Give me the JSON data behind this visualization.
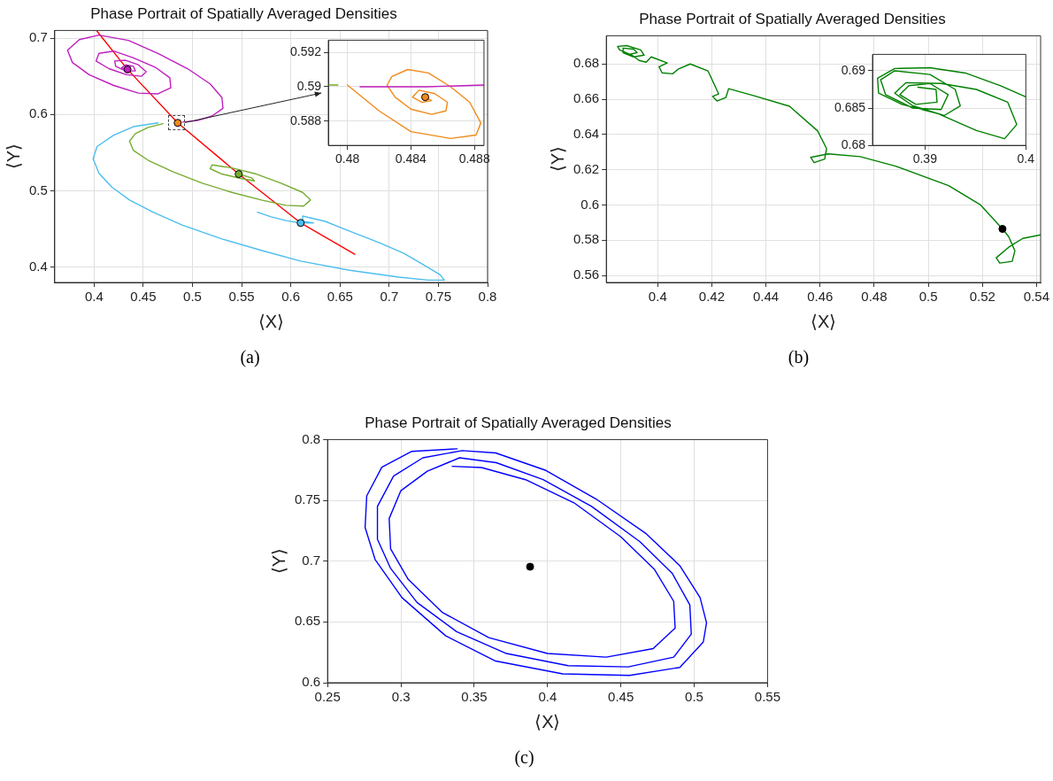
{
  "chart_data": [
    {
      "type": "line",
      "title": "Phase Portrait of Spatially Averaged Densities",
      "xlabel": "⟨X⟩",
      "ylabel": "⟨Y⟩",
      "xlim": [
        0.36,
        0.8
      ],
      "ylim": [
        0.38,
        0.71
      ],
      "xticks": [
        0.4,
        0.45,
        0.5,
        0.55,
        0.6,
        0.65,
        0.7,
        0.75,
        0.8
      ],
      "yticks": [
        0.4,
        0.5,
        0.6,
        0.7
      ],
      "grid": true,
      "annotations": [
        "(a)"
      ],
      "series": [
        {
          "type": "line",
          "color": "#bf1fbf",
          "x": [
            0.49,
            0.505,
            0.52,
            0.531,
            0.53,
            0.518,
            0.495,
            0.465,
            0.435,
            0.405,
            0.385,
            0.373,
            0.378,
            0.395,
            0.42,
            0.445,
            0.465,
            0.478,
            0.477,
            0.462,
            0.44,
            0.42,
            0.405,
            0.402,
            0.415,
            0.433,
            0.448,
            0.453,
            0.445,
            0.432,
            0.421,
            0.422,
            0.432,
            0.442,
            0.44,
            0.432,
            0.428,
            0.434
          ],
          "values": [
            0.59,
            0.592,
            0.598,
            0.608,
            0.622,
            0.64,
            0.66,
            0.68,
            0.697,
            0.704,
            0.698,
            0.684,
            0.668,
            0.652,
            0.638,
            0.628,
            0.627,
            0.635,
            0.648,
            0.662,
            0.674,
            0.683,
            0.68,
            0.67,
            0.66,
            0.652,
            0.65,
            0.656,
            0.665,
            0.671,
            0.67,
            0.663,
            0.657,
            0.657,
            0.663,
            0.665,
            0.661,
            0.659
          ]
        },
        {
          "type": "line",
          "color": "#77ac30",
          "x": [
            0.47,
            0.455,
            0.442,
            0.436,
            0.44,
            0.455,
            0.48,
            0.51,
            0.54,
            0.57,
            0.595,
            0.613,
            0.62,
            0.612,
            0.59,
            0.565,
            0.54,
            0.52,
            0.518,
            0.53,
            0.55,
            0.563,
            0.56,
            0.547
          ],
          "values": [
            0.588,
            0.583,
            0.575,
            0.565,
            0.553,
            0.54,
            0.525,
            0.51,
            0.498,
            0.488,
            0.481,
            0.48,
            0.488,
            0.498,
            0.51,
            0.522,
            0.53,
            0.534,
            0.529,
            0.522,
            0.516,
            0.513,
            0.517,
            0.522
          ]
        },
        {
          "type": "line",
          "color": "#4dbeee",
          "x": [
            0.465,
            0.44,
            0.42,
            0.403,
            0.399,
            0.405,
            0.418,
            0.436,
            0.46,
            0.49,
            0.53,
            0.57,
            0.61,
            0.66,
            0.71,
            0.74,
            0.756,
            0.752,
            0.735,
            0.715,
            0.69,
            0.66,
            0.635,
            0.612,
            0.612,
            0.623,
            0.61,
            0.6,
            0.566,
            0.58,
            0.595,
            0.61
          ],
          "values": [
            0.589,
            0.584,
            0.573,
            0.558,
            0.542,
            0.523,
            0.505,
            0.488,
            0.472,
            0.455,
            0.437,
            0.422,
            0.408,
            0.396,
            0.387,
            0.383,
            0.383,
            0.39,
            0.403,
            0.418,
            0.432,
            0.447,
            0.46,
            0.467,
            0.46,
            0.458,
            0.458,
            null,
            0.472,
            0.466,
            0.461,
            0.458
          ]
        },
        {
          "type": "line",
          "color": "#ff0000",
          "x": [
            0.403,
            0.434,
            0.485,
            0.547,
            0.61,
            0.665
          ],
          "values": [
            0.709,
            0.659,
            0.589,
            0.522,
            0.458,
            0.417
          ]
        },
        {
          "type": "scatter",
          "marker": "circle",
          "colors": [
            "#bf1fbf",
            "#f08a1c",
            "#77ac30",
            "#4dbeee"
          ],
          "x": [
            0.434,
            0.485,
            0.547,
            0.61
          ],
          "values": [
            0.659,
            0.589,
            0.522,
            0.458
          ]
        }
      ]
    },
    {
      "type": "line",
      "xlim": [
        0.4788,
        0.4886
      ],
      "ylim": [
        0.5866,
        0.5927
      ],
      "xticks": [
        0.48,
        0.484,
        0.488
      ],
      "yticks": [
        0.588,
        0.59,
        0.592
      ],
      "grid": true,
      "series": [
        {
          "type": "line",
          "color": "#77ac30",
          "x": [
            0.4788,
            0.4794
          ],
          "values": [
            0.5901,
            0.5901
          ]
        },
        {
          "type": "line",
          "color": "#bf1fbf",
          "x": [
            0.4808,
            0.485,
            0.4886
          ],
          "values": [
            0.59,
            0.59,
            0.5901
          ]
        },
        {
          "type": "line",
          "color": "#f08a1c",
          "x": [
            0.48,
            0.482,
            0.484,
            0.4865,
            0.4881,
            0.4884,
            0.4877,
            0.4865,
            0.4851,
            0.4838,
            0.4828,
            0.4825,
            0.483,
            0.484,
            0.4853,
            0.4862,
            0.4863,
            0.4855,
            0.4845,
            0.4841,
            0.4847,
            0.4853,
            0.4849
          ],
          "values": [
            0.5901,
            0.5886,
            0.5874,
            0.587,
            0.5872,
            0.5879,
            0.5891,
            0.59,
            0.5908,
            0.591,
            0.5906,
            0.5901,
            0.5894,
            0.5887,
            0.5884,
            0.5886,
            0.5891,
            0.5896,
            0.5898,
            0.5894,
            0.5891,
            0.5892,
            0.5894
          ]
        },
        {
          "type": "scatter",
          "marker": "circle",
          "colors": [
            "#f08a1c"
          ],
          "x": [
            0.4849
          ],
          "values": [
            0.5894
          ]
        }
      ]
    },
    {
      "type": "line",
      "title": "Phase Portrait of Spatially Averaged Densities",
      "xlabel": "⟨X⟩",
      "ylabel": "⟨Y⟩",
      "xlim": [
        0.381,
        0.5415
      ],
      "ylim": [
        0.556,
        0.696
      ],
      "xticks": [
        0.4,
        0.42,
        0.44,
        0.46,
        0.48,
        0.5,
        0.52,
        0.54
      ],
      "yticks": [
        0.56,
        0.58,
        0.6,
        0.62,
        0.64,
        0.66,
        0.68
      ],
      "grid": true,
      "annotations": [
        "(b)"
      ],
      "series": [
        {
          "type": "line",
          "color": "#008000",
          "x": [
            0.5415,
            0.5349,
            0.5297,
            0.5251,
            0.5264,
            0.531,
            0.532,
            0.5297,
            0.5274,
            0.5193,
            0.5075,
            0.4879,
            0.4748,
            0.463,
            0.4565,
            0.4578,
            0.4617,
            0.4624,
            0.4591,
            0.4487,
            0.4356,
            0.4262,
            0.4252,
            0.4219,
            0.4203,
            0.4225,
            0.4186,
            0.412,
            0.4075,
            0.4055,
            0.4016,
            0.4005,
            0.4035,
            0.3976,
            0.3957,
            0.3931,
            0.3905,
            0.3859,
            0.3852,
            0.3885,
            0.3937,
            0.395,
            0.3911,
            0.3872,
            0.3872,
            0.3911,
            0.3924,
            0.3898
          ],
          "values": [
            0.583,
            0.581,
            0.576,
            0.57,
            0.567,
            0.568,
            0.574,
            0.582,
            0.5864,
            0.6,
            0.611,
            0.622,
            0.6274,
            0.629,
            0.627,
            0.624,
            0.626,
            0.632,
            0.642,
            0.656,
            0.662,
            0.666,
            0.661,
            0.659,
            0.6616,
            0.663,
            0.676,
            0.68,
            0.677,
            0.6744,
            0.675,
            0.6784,
            0.6806,
            0.684,
            0.681,
            0.682,
            0.685,
            0.688,
            0.69,
            0.6904,
            0.688,
            0.685,
            0.684,
            0.6864,
            0.689,
            0.6884,
            0.6864,
            0.6856
          ]
        },
        {
          "type": "scatter",
          "marker": "circle",
          "colors": [
            "#000000"
          ],
          "x": [
            0.5274
          ],
          "values": [
            0.5864
          ]
        }
      ]
    },
    {
      "type": "line",
      "xlim": [
        0.3848,
        0.4
      ],
      "ylim": [
        0.68,
        0.6922
      ],
      "xticks": [
        0.39,
        0.4
      ],
      "yticks": [
        0.68,
        0.685,
        0.69
      ],
      "grid": true,
      "series": [
        {
          "type": "line",
          "color": "#008000",
          "x": [
            0.4,
            0.3975,
            0.394,
            0.3905,
            0.387,
            0.3853,
            0.3854,
            0.3877,
            0.3912,
            0.3951,
            0.3979,
            0.3991,
            0.3982,
            0.3951,
            0.3916,
            0.3881,
            0.387,
            0.3888,
            0.3919,
            0.3935,
            0.393,
            0.3905,
            0.387,
            0.3856,
            0.3861,
            0.3888,
            0.3916,
            0.3923,
            0.3905,
            0.3884,
            0.3875,
            0.3891,
            0.3912,
            0.3911,
            0.3893
          ],
          "values": [
            0.6865,
            0.688,
            0.6897,
            0.6904,
            0.6903,
            0.689,
            0.687,
            0.6855,
            0.6843,
            0.682,
            0.6809,
            0.6828,
            0.6858,
            0.6875,
            0.6883,
            0.6884,
            0.687,
            0.6853,
            0.684,
            0.6853,
            0.6875,
            0.6895,
            0.69,
            0.6888,
            0.6868,
            0.685,
            0.6848,
            0.6868,
            0.6883,
            0.688,
            0.6868,
            0.6855,
            0.6858,
            0.6875,
            0.6878
          ]
        }
      ]
    },
    {
      "type": "line",
      "title": "Phase Portrait of Spatially Averaged Densities",
      "xlabel": "⟨X⟩",
      "ylabel": "⟨Y⟩",
      "xlim": [
        0.25,
        0.55
      ],
      "ylim": [
        0.6,
        0.8
      ],
      "xticks": [
        0.25,
        0.3,
        0.35,
        0.4,
        0.45,
        0.5,
        0.55
      ],
      "yticks": [
        0.6,
        0.65,
        0.7,
        0.75,
        0.8
      ],
      "grid": true,
      "annotations": [
        "(c)"
      ],
      "series": [
        {
          "type": "line",
          "color": "#0000ff",
          "x": [
            0.3384,
            0.3075,
            0.287,
            0.2767,
            0.2756,
            0.2824,
            0.3007,
            0.3304,
            0.3646,
            0.4103,
            0.4559,
            0.4902,
            0.5062,
            0.5084,
            0.504,
            0.4902,
            0.4674,
            0.4331,
            0.3989,
            0.3646,
            0.3418,
            0.315,
            0.295,
            0.284,
            0.284,
            0.293,
            0.311,
            0.338,
            0.372,
            0.414,
            0.455,
            0.486,
            0.498,
            0.497,
            0.485,
            0.463,
            0.43,
            0.397,
            0.365,
            0.34,
            0.318,
            0.3,
            0.292,
            0.293,
            0.305,
            0.328,
            0.36,
            0.4,
            0.44,
            0.472,
            0.487,
            0.486,
            0.473,
            0.45,
            0.418,
            0.385,
            0.355,
            0.335
          ],
          "values": [
            0.7924,
            0.7903,
            0.7773,
            0.7537,
            0.7276,
            0.7014,
            0.67,
            0.6387,
            0.6178,
            0.6073,
            0.606,
            0.6126,
            0.6335,
            0.6492,
            0.67,
            0.6962,
            0.7224,
            0.7511,
            0.7746,
            0.789,
            0.7909,
            0.785,
            0.77,
            0.745,
            0.718,
            0.694,
            0.666,
            0.642,
            0.624,
            0.614,
            0.613,
            0.621,
            0.64,
            0.664,
            0.69,
            0.716,
            0.745,
            0.767,
            0.781,
            0.785,
            0.774,
            0.758,
            0.735,
            0.71,
            0.685,
            0.658,
            0.637,
            0.624,
            0.621,
            0.628,
            0.645,
            0.667,
            0.693,
            0.72,
            0.748,
            0.767,
            0.777,
            0.778
          ]
        },
        {
          "type": "scatter",
          "marker": "circle",
          "colors": [
            "#000000"
          ],
          "x": [
            0.3881
          ],
          "values": [
            0.6954
          ]
        }
      ]
    }
  ]
}
